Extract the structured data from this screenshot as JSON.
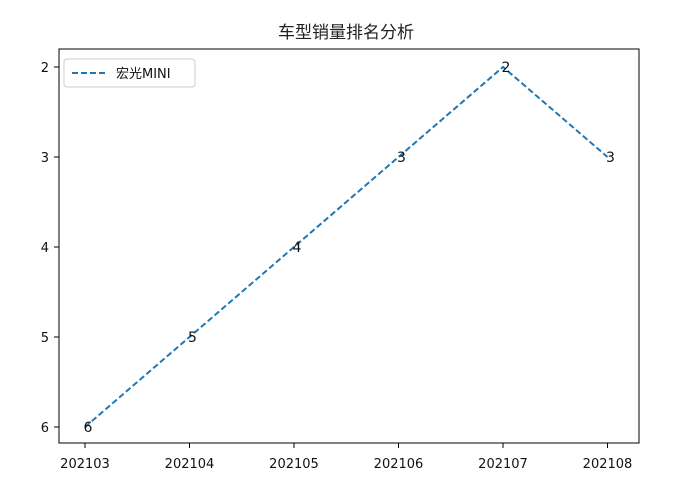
{
  "chart_data": {
    "type": "line",
    "title": "车型销量排名分析",
    "xlabel": "",
    "ylabel": "",
    "categories": [
      "202103",
      "202104",
      "202105",
      "202106",
      "202107",
      "202108"
    ],
    "series": [
      {
        "name": "宏光MINI",
        "values": [
          6,
          5,
          4,
          3,
          2,
          3
        ],
        "color": "#1f77b4",
        "line_style": "dashed"
      }
    ],
    "yticks": [
      2,
      3,
      4,
      5,
      6
    ],
    "ylim": [
      6.05,
      1.8
    ],
    "y_inverted": true,
    "grid": false,
    "legend_position": "top-left"
  }
}
